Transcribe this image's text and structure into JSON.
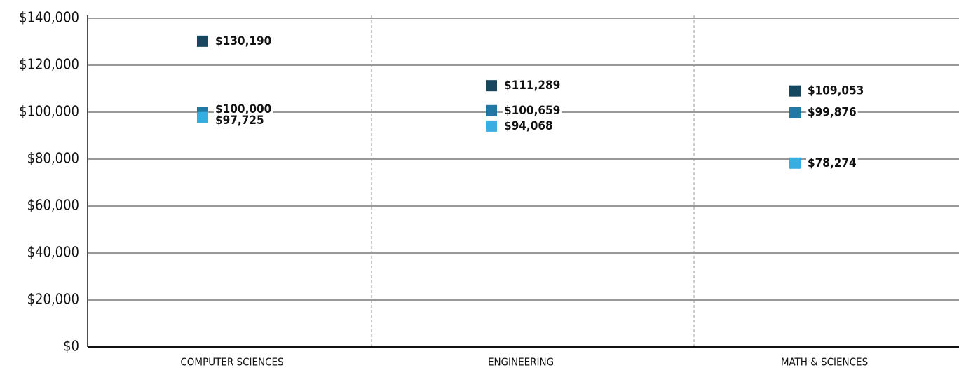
{
  "chart_data": {
    "type": "dot",
    "categories": [
      "COMPUTER SCIENCES",
      "ENGINEERING",
      "MATH & SCIENCES"
    ],
    "series": [
      {
        "color": "#15475f",
        "values": [
          130190,
          111289,
          109053
        ],
        "value_labels": [
          "$130,190",
          "$111,289",
          "$109,053"
        ]
      },
      {
        "color": "#1f78a6",
        "values": [
          100000,
          100659,
          99876
        ],
        "value_labels": [
          "$100,000",
          "$100,659",
          "$99,876"
        ]
      },
      {
        "color": "#38ade2",
        "values": [
          97725,
          94068,
          78274
        ],
        "value_labels": [
          "$97,725",
          "$94,068",
          "$78,274"
        ]
      }
    ],
    "ylim": [
      0,
      140000
    ],
    "yticks": [
      {
        "value": 0,
        "label": "$0"
      },
      {
        "value": 20000,
        "label": "$20,000"
      },
      {
        "value": 40000,
        "label": "$40,000"
      },
      {
        "value": 60000,
        "label": "$60,000"
      },
      {
        "value": 80000,
        "label": "$80,000"
      },
      {
        "value": 100000,
        "label": "$100,000"
      },
      {
        "value": 120000,
        "label": "$120,000"
      },
      {
        "value": 140000,
        "label": "$140,000"
      }
    ],
    "grid": true
  }
}
